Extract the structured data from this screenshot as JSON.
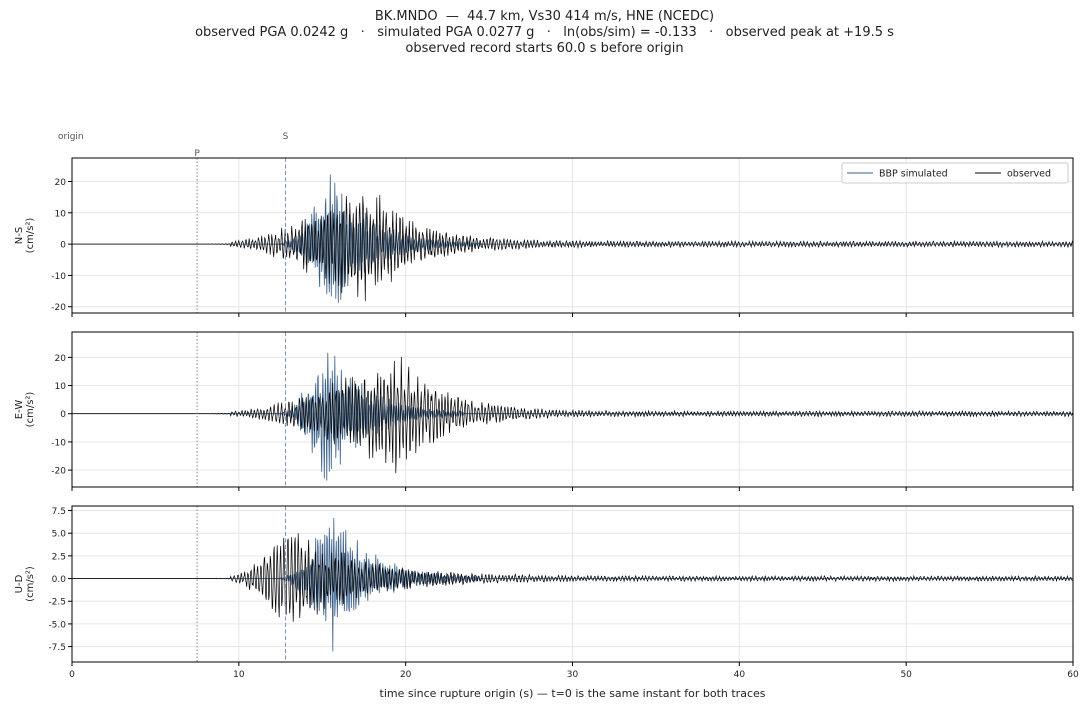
{
  "title": {
    "line1": "BK.MNDO  —  44.7 km, Vs30 414 m/s, HNE (NCEDC)",
    "line2": "observed PGA 0.0242 g   ·   simulated PGA 0.0277 g   ·   ln(obs/sim) = -0.133   ·   observed peak at +19.5 s",
    "line3": "observed record starts 60.0 s before origin"
  },
  "chart_data": {
    "type": "line",
    "xlabel": "time since rupture origin (s)   —   t=0 is the same instant for both traces",
    "xlim": [
      0,
      60
    ],
    "x_ticks": [
      0,
      10,
      20,
      30,
      40,
      50,
      60
    ],
    "grid": true,
    "legend": {
      "placement": "top-right",
      "entries": [
        "BBP simulated",
        "observed"
      ]
    },
    "series_colors": {
      "BBP simulated": "#3b6089",
      "observed": "#000000"
    },
    "markers": [
      {
        "label": "origin",
        "t": 0
      },
      {
        "label": "P",
        "t": 7.5,
        "style": "dotted",
        "color": "#888888"
      },
      {
        "label": "S",
        "t": 12.8,
        "style": "dashed",
        "color": "#7d8fbf"
      }
    ],
    "panels": [
      {
        "ylabel": "N-S\n(cm/s²)",
        "ylim": [
          -22,
          27.5
        ],
        "yticks": [
          -20,
          -10,
          0,
          10,
          20
        ],
        "series": [
          {
            "name": "BBP simulated",
            "envelope": {
              "onset": 12.5,
              "peak_t": 15.5,
              "peak": 25,
              "decay": 0.2,
              "floor": 0.4,
              "end": 24.5
            }
          },
          {
            "name": "observed",
            "envelope": {
              "onset": 9.5,
              "peak_t": 17.5,
              "peak": 22,
              "decay": 0.17,
              "floor": 1.0,
              "end": 60
            }
          }
        ]
      },
      {
        "ylabel": "E-W\n(cm/s²)",
        "ylim": [
          -26,
          29
        ],
        "yticks": [
          -20,
          -10,
          0,
          10,
          20
        ],
        "series": [
          {
            "name": "BBP simulated",
            "envelope": {
              "onset": 12.5,
              "peak_t": 15.3,
              "peak": 27,
              "decay": 0.2,
              "floor": 0.4,
              "end": 23.5
            }
          },
          {
            "name": "observed",
            "envelope": {
              "onset": 9.5,
              "peak_t": 19.5,
              "peak": 23,
              "decay": 0.17,
              "floor": 1.0,
              "end": 60
            }
          }
        ]
      },
      {
        "ylabel": "U-D\n(cm/s²)",
        "ylim": [
          -9.2,
          8
        ],
        "yticks": [
          -7.5,
          -5.0,
          -2.5,
          0.0,
          2.5,
          5.0,
          7.5
        ],
        "series": [
          {
            "name": "BBP simulated",
            "envelope": {
              "onset": 12.5,
              "peak_t": 15.6,
              "peak": 8.2,
              "decay": 0.2,
              "floor": 0.15,
              "end": 24.5
            }
          },
          {
            "name": "observed",
            "envelope": {
              "onset": 9.5,
              "peak_t": 13.0,
              "peak": 6.5,
              "decay": 0.12,
              "floor": 0.3,
              "end": 60
            }
          }
        ]
      }
    ]
  }
}
